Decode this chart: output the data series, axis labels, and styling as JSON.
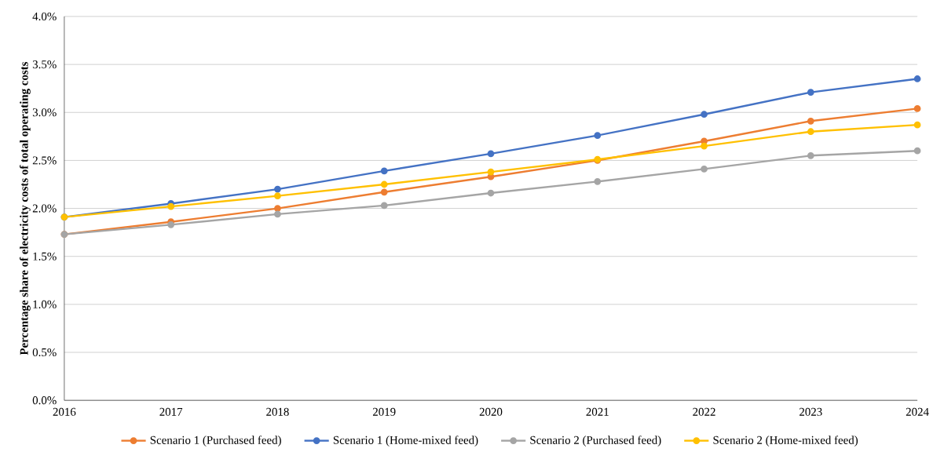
{
  "chart_data": {
    "type": "line",
    "ylabel": "Percentage share of electricity costs of total operating costs",
    "categories": [
      "2016",
      "2017",
      "2018",
      "2019",
      "2020",
      "2021",
      "2022",
      "2023",
      "2024"
    ],
    "series": [
      {
        "name": "Scenario 1 (Purchased feed)",
        "color": "#ed7d31",
        "values": [
          1.73,
          1.86,
          2.0,
          2.17,
          2.33,
          2.5,
          2.7,
          2.91,
          3.04
        ]
      },
      {
        "name": "Scenario 1 (Home-mixed feed)",
        "color": "#4472c4",
        "values": [
          1.91,
          2.05,
          2.2,
          2.39,
          2.57,
          2.76,
          2.98,
          3.21,
          3.35
        ]
      },
      {
        "name": "Scenario 2 (Purchased feed)",
        "color": "#a5a5a5",
        "values": [
          1.73,
          1.83,
          1.94,
          2.03,
          2.16,
          2.28,
          2.41,
          2.55,
          2.6
        ]
      },
      {
        "name": "Scenario 2 (Home-mixed feed)",
        "color": "#ffc000",
        "values": [
          1.91,
          2.02,
          2.13,
          2.25,
          2.38,
          2.51,
          2.65,
          2.8,
          2.87
        ]
      }
    ],
    "ylim": [
      0,
      4
    ],
    "yticks": [
      {
        "value": 0,
        "label": "0.0%"
      },
      {
        "value": 0.5,
        "label": "0.5%"
      },
      {
        "value": 1,
        "label": "1.0%"
      },
      {
        "value": 1.5,
        "label": "1.5%"
      },
      {
        "value": 2,
        "label": "2.0%"
      },
      {
        "value": 2.5,
        "label": "2.5%"
      },
      {
        "value": 3,
        "label": "3.0%"
      },
      {
        "value": 3.5,
        "label": "3.5%"
      },
      {
        "value": 4,
        "label": "4.0%"
      }
    ],
    "grid": "y",
    "legend": "bottom",
    "marker": "circle",
    "line_style": "solid"
  }
}
